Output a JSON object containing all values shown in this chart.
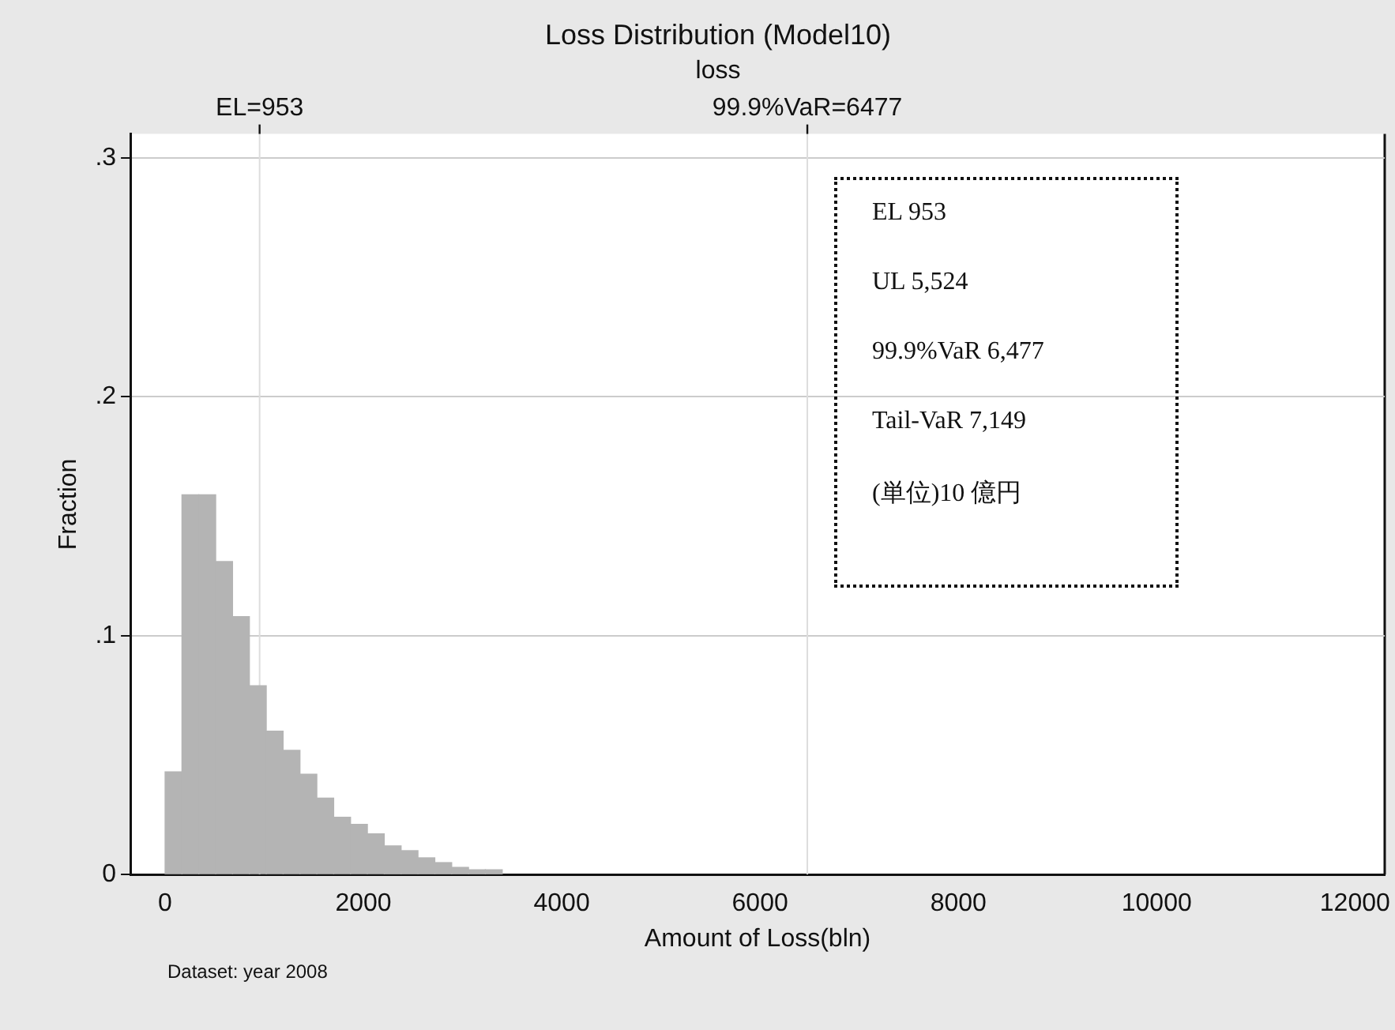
{
  "chart_data": {
    "type": "histogram",
    "title": "Loss Distribution (Model10)",
    "subtitle": "loss",
    "xlabel": "Amount of Loss(bln)",
    "ylabel": "Fraction",
    "bins": [
      0,
      170,
      340,
      510,
      680,
      850,
      1020,
      1190,
      1360,
      1530,
      1700,
      1870,
      2040,
      2210,
      2380,
      2550,
      2720,
      2890,
      3060,
      3230,
      3400,
      3570,
      3740,
      3910
    ],
    "values": [
      0.043,
      0.159,
      0.159,
      0.131,
      0.108,
      0.079,
      0.06,
      0.052,
      0.042,
      0.032,
      0.024,
      0.021,
      0.017,
      0.012,
      0.01,
      0.007,
      0.005,
      0.003,
      0.002,
      0.002,
      null,
      null,
      null
    ],
    "color": "#b4b4b4",
    "xlim": [
      -350,
      12300
    ],
    "xticks": [
      0,
      2000,
      4000,
      6000,
      8000,
      10000,
      12000
    ],
    "ylim": [
      0,
      0.31
    ],
    "yticks": [
      0,
      {
        "value": 0.1,
        "label": ".1"
      },
      {
        "value": 0.2,
        "label": ".2"
      },
      {
        "value": 0.3,
        "label": ".3"
      }
    ],
    "ref_lines": [
      {
        "axis": "x",
        "value": 953,
        "label": "EL=953",
        "color": "#dddddd"
      },
      {
        "axis": "x",
        "value": 6477,
        "label": "99.9%VaR=6477",
        "color": "#dddddd"
      }
    ],
    "grid": "y",
    "legend": false,
    "annotations": [
      "EL 953",
      "UL 5,524",
      "99.9%VaR 6,477",
      "Tail-VaR 7,149",
      "(単位)10 億円",
      "Dataset: year 2008"
    ]
  }
}
